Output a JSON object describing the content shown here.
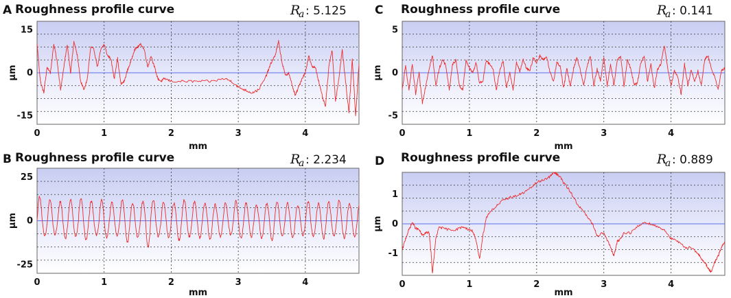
{
  "chart_data": [
    {
      "id": "A",
      "type": "line",
      "panel_label": "A",
      "title": "Roughness profile curve",
      "ra_label": "R",
      "ra_subscript": "a",
      "ra_value": ": 5.125",
      "xlabel": "mm",
      "ylabel": "μm",
      "xlim": [
        0,
        4.8
      ],
      "ylim": [
        -18,
        18
      ],
      "x_ticks": [
        0,
        1,
        2,
        3,
        4
      ],
      "y_ticks": [
        15,
        0,
        -15
      ],
      "grid": true,
      "series": [
        {
          "color": "#ee2a2a",
          "x": [
            0,
            0.05,
            0.1,
            0.15,
            0.2,
            0.25,
            0.3,
            0.35,
            0.4,
            0.45,
            0.5,
            0.55,
            0.6,
            0.65,
            0.7,
            0.75,
            0.8,
            0.85,
            0.9,
            0.95,
            1.0,
            1.05,
            1.1,
            1.15,
            1.2,
            1.25,
            1.3,
            1.35,
            1.4,
            1.45,
            1.5,
            1.55,
            1.6,
            1.65,
            1.7,
            1.75,
            1.8,
            1.85,
            1.9,
            2.0,
            2.2,
            2.4,
            2.6,
            2.8,
            2.9,
            3.0,
            3.1,
            3.2,
            3.3,
            3.4,
            3.45,
            3.5,
            3.55,
            3.6,
            3.65,
            3.7,
            3.75,
            3.8,
            3.85,
            3.9,
            3.95,
            4.0,
            4.05,
            4.1,
            4.15,
            4.2,
            4.25,
            4.3,
            4.35,
            4.4,
            4.45,
            4.5,
            4.55,
            4.6,
            4.65,
            4.7,
            4.75,
            4.8
          ],
          "y": [
            10,
            -3,
            -7,
            2,
            0,
            10,
            4,
            -6,
            2,
            10,
            0,
            11,
            6,
            -3,
            -6,
            -2,
            9,
            8,
            2,
            8,
            10,
            6,
            5,
            -2,
            5,
            -4,
            -3,
            1,
            4,
            8,
            9,
            10,
            8,
            2,
            6,
            2,
            -2,
            -3,
            -2,
            -3,
            -3,
            -3,
            -3,
            -2,
            -3,
            -5,
            -6,
            -7,
            -6,
            -2,
            1,
            4,
            6,
            11,
            4,
            -1,
            0,
            -4,
            -8,
            -5,
            -2,
            0,
            6,
            2,
            2,
            -3,
            -8,
            -12,
            2,
            8,
            -10,
            -2,
            8,
            -3,
            -14,
            5,
            -15,
            3
          ]
        }
      ]
    },
    {
      "id": "B",
      "type": "line",
      "panel_label": "B",
      "title": "Roughness profile curve",
      "ra_label": "R",
      "ra_subscript": "a",
      "ra_value": ": 2.234",
      "xlabel": "mm",
      "ylabel": "μm",
      "xlim": [
        0,
        4.8
      ],
      "ylim": [
        -30,
        30
      ],
      "x_ticks": [
        0,
        1,
        2,
        3,
        4
      ],
      "y_ticks": [
        25,
        0,
        -25
      ],
      "grid": true,
      "series": [
        {
          "color": "#ee2a2a",
          "period": 0.154,
          "amplitude": 10,
          "peak_values": [
            14,
            12,
            11,
            12,
            13,
            11,
            12,
            11,
            12,
            10,
            11,
            12,
            11,
            10,
            12,
            11,
            10,
            9,
            10,
            11,
            10,
            9,
            10,
            11,
            10,
            9,
            11,
            10,
            11,
            12,
            10,
            11
          ],
          "trough_values": [
            -9,
            -8,
            -10,
            -9,
            -11,
            -8,
            -10,
            -9,
            -12,
            -10,
            -15,
            -9,
            -10,
            -11,
            -9,
            -10,
            -11,
            -9,
            -8,
            -10,
            -9,
            -10,
            -11,
            -9,
            -10,
            -8,
            -9,
            -10,
            -9,
            -10,
            -9,
            -8
          ]
        }
      ]
    },
    {
      "id": "C",
      "type": "line",
      "panel_label": "C",
      "title": "Roughness profile curve",
      "ra_label": "R",
      "ra_subscript": "a",
      "ra_value": ": 0.141",
      "xlabel": "mm",
      "ylabel": "μm",
      "xlim": [
        0,
        4.8
      ],
      "ylim": [
        -6,
        6
      ],
      "x_ticks": [
        0,
        1,
        2,
        3,
        4
      ],
      "y_ticks": [
        5,
        0,
        -5
      ],
      "grid": true,
      "series": [
        {
          "color": "#ee2a2a",
          "x": [
            0,
            0.05,
            0.1,
            0.15,
            0.2,
            0.25,
            0.3,
            0.35,
            0.4,
            0.45,
            0.5,
            0.55,
            0.6,
            0.65,
            0.7,
            0.75,
            0.8,
            0.85,
            0.9,
            0.95,
            1.0,
            1.05,
            1.1,
            1.15,
            1.2,
            1.25,
            1.3,
            1.35,
            1.4,
            1.45,
            1.5,
            1.55,
            1.6,
            1.65,
            1.7,
            1.75,
            1.8,
            1.85,
            1.9,
            1.95,
            2.0,
            2.05,
            2.1,
            2.15,
            2.2,
            2.25,
            2.3,
            2.35,
            2.4,
            2.45,
            2.5,
            2.55,
            2.6,
            2.65,
            2.7,
            2.75,
            2.8,
            2.85,
            2.9,
            2.95,
            3.0,
            3.05,
            3.1,
            3.15,
            3.2,
            3.25,
            3.3,
            3.35,
            3.4,
            3.45,
            3.5,
            3.55,
            3.6,
            3.65,
            3.7,
            3.75,
            3.8,
            3.85,
            3.9,
            3.95,
            4.0,
            4.05,
            4.1,
            4.15,
            4.2,
            4.25,
            4.3,
            4.35,
            4.4,
            4.45,
            4.5,
            4.55,
            4.6,
            4.65,
            4.7,
            4.75,
            4.8
          ],
          "y": [
            -2,
            0.8,
            -2,
            1,
            -2.5,
            0,
            -3.5,
            -1.5,
            0.5,
            2,
            -1.5,
            0.5,
            1.5,
            0.8,
            -2,
            1,
            1.5,
            -1.5,
            -2,
            1.5,
            0.5,
            0,
            1.2,
            -1.2,
            -1,
            1.5,
            1,
            0.5,
            -2,
            0.2,
            1.5,
            -1.8,
            0,
            -2,
            1.2,
            0.2,
            1.5,
            0.5,
            0.2,
            1.8,
            1.2,
            2,
            1.5,
            1.8,
            0,
            -1,
            1.2,
            0.8,
            -1.8,
            0.5,
            -1.5,
            0.5,
            1.8,
            0.3,
            -1.5,
            0.8,
            2,
            -1.5,
            0.5,
            -1,
            1.8,
            -1.5,
            1,
            -1.5,
            1.5,
            2,
            -1.6,
            1.5,
            0.5,
            -1.4,
            -1.2,
            1.2,
            2,
            -1,
            1,
            -1.8,
            0.4,
            1,
            3.2,
            0.5,
            -1.5,
            0.2,
            -0.5,
            -2.5,
            1,
            -1.5,
            0.4,
            -1,
            0.2,
            -1.5,
            1.5,
            2,
            0.5,
            -0.5,
            -2,
            0.2,
            0.6
          ]
        }
      ]
    },
    {
      "id": "D",
      "type": "line",
      "panel_label": "D",
      "title": "Roughness profile curve",
      "ra_label": "R",
      "ra_subscript": "a",
      "ra_value": ": 0.889",
      "xlabel": "mm",
      "ylabel": "μm",
      "xlim": [
        0,
        4.8
      ],
      "ylim": [
        -1.75,
        1.75
      ],
      "x_ticks": [
        0,
        1,
        2,
        3,
        4
      ],
      "y_ticks": [
        1,
        0,
        -1
      ],
      "grid": true,
      "series": [
        {
          "color": "#ee2a2a",
          "x": [
            0,
            0.05,
            0.1,
            0.15,
            0.2,
            0.25,
            0.3,
            0.35,
            0.4,
            0.43,
            0.45,
            0.5,
            0.55,
            0.6,
            0.7,
            0.8,
            0.9,
            1.0,
            1.05,
            1.1,
            1.15,
            1.2,
            1.25,
            1.3,
            1.4,
            1.5,
            1.6,
            1.7,
            1.8,
            1.9,
            2.0,
            2.1,
            2.2,
            2.25,
            2.3,
            2.35,
            2.4,
            2.5,
            2.6,
            2.7,
            2.8,
            2.85,
            2.9,
            3.0,
            3.1,
            3.15,
            3.2,
            3.25,
            3.3,
            3.4,
            3.5,
            3.6,
            3.7,
            3.8,
            3.9,
            4.0,
            4.1,
            4.2,
            4.3,
            4.4,
            4.45,
            4.5,
            4.55,
            4.6,
            4.65,
            4.7,
            4.75,
            4.8
          ],
          "y": [
            -0.9,
            -0.5,
            -0.2,
            0.05,
            -0.15,
            -0.2,
            -0.4,
            -0.3,
            -0.3,
            -1.0,
            -1.7,
            -0.5,
            -0.1,
            -0.15,
            -0.2,
            -0.2,
            -0.1,
            -0.2,
            -0.25,
            -0.6,
            -1.2,
            -0.4,
            0.2,
            0.4,
            0.6,
            0.8,
            0.9,
            0.95,
            1.05,
            1.2,
            1.4,
            1.5,
            1.6,
            1.75,
            1.7,
            1.6,
            1.4,
            1.1,
            0.7,
            0.4,
            0.1,
            -0.1,
            -0.4,
            -0.3,
            -0.8,
            -1.1,
            -0.6,
            -0.5,
            -0.3,
            -0.3,
            -0.1,
            0.05,
            0.0,
            -0.1,
            -0.2,
            -0.5,
            -0.6,
            -0.8,
            -0.8,
            -1.0,
            -1.2,
            -1.3,
            -1.5,
            -1.65,
            -1.3,
            -1.1,
            -0.8,
            -0.6
          ]
        }
      ]
    }
  ]
}
